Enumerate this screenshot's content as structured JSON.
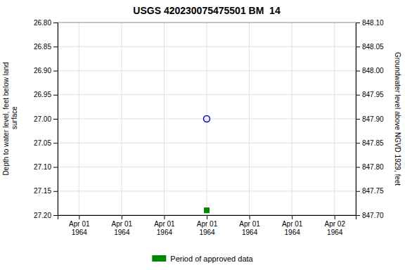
{
  "chart_data": {
    "type": "scatter",
    "title": "USGS 420230075475501 BM  14",
    "y_label": "Depth to water level, feet below land\n surface",
    "y2_label": "Groundwater level above NGVD 1929, feet",
    "categories": [
      "Apr 01\n1964",
      "Apr 01\n1964",
      "Apr 01\n1964",
      "Apr 01\n1964",
      "Apr 01\n1964",
      "Apr 01\n1964",
      "Apr 02\n1964"
    ],
    "series": [
      {
        "color": "#0000cc",
        "marker": "open-circle",
        "values": [
          null,
          null,
          null,
          27.0,
          null,
          null,
          null
        ]
      },
      {
        "name": "Period of approved data",
        "color": "#008800",
        "marker": "square",
        "values": [
          null,
          null,
          null,
          27.19,
          null,
          null,
          null
        ]
      }
    ],
    "ylim": [
      27.2,
      26.8
    ],
    "yticks": [
      {
        "value": 26.8,
        "label": "26.80"
      },
      {
        "value": 26.85,
        "label": "26.85"
      },
      {
        "value": 26.9,
        "label": "26.90"
      },
      {
        "value": 26.95,
        "label": "26.95"
      },
      {
        "value": 27.0,
        "label": "27.00"
      },
      {
        "value": 27.05,
        "label": "27.05"
      },
      {
        "value": 27.1,
        "label": "27.10"
      },
      {
        "value": 27.15,
        "label": "27.15"
      },
      {
        "value": 27.2,
        "label": "27.20"
      }
    ],
    "y2lim": [
      847.7,
      848.1
    ],
    "y2ticks": [
      {
        "value": 847.7,
        "label": "847.70"
      },
      {
        "value": 847.75,
        "label": "847.75"
      },
      {
        "value": 847.8,
        "label": "847.80"
      },
      {
        "value": 847.85,
        "label": "847.85"
      },
      {
        "value": 847.9,
        "label": "847.90"
      },
      {
        "value": 847.95,
        "label": "847.95"
      },
      {
        "value": 848.0,
        "label": "848.00"
      },
      {
        "value": 848.05,
        "label": "848.05"
      },
      {
        "value": 848.1,
        "label": "848.10"
      }
    ],
    "grid": true,
    "legend": "bottom"
  }
}
